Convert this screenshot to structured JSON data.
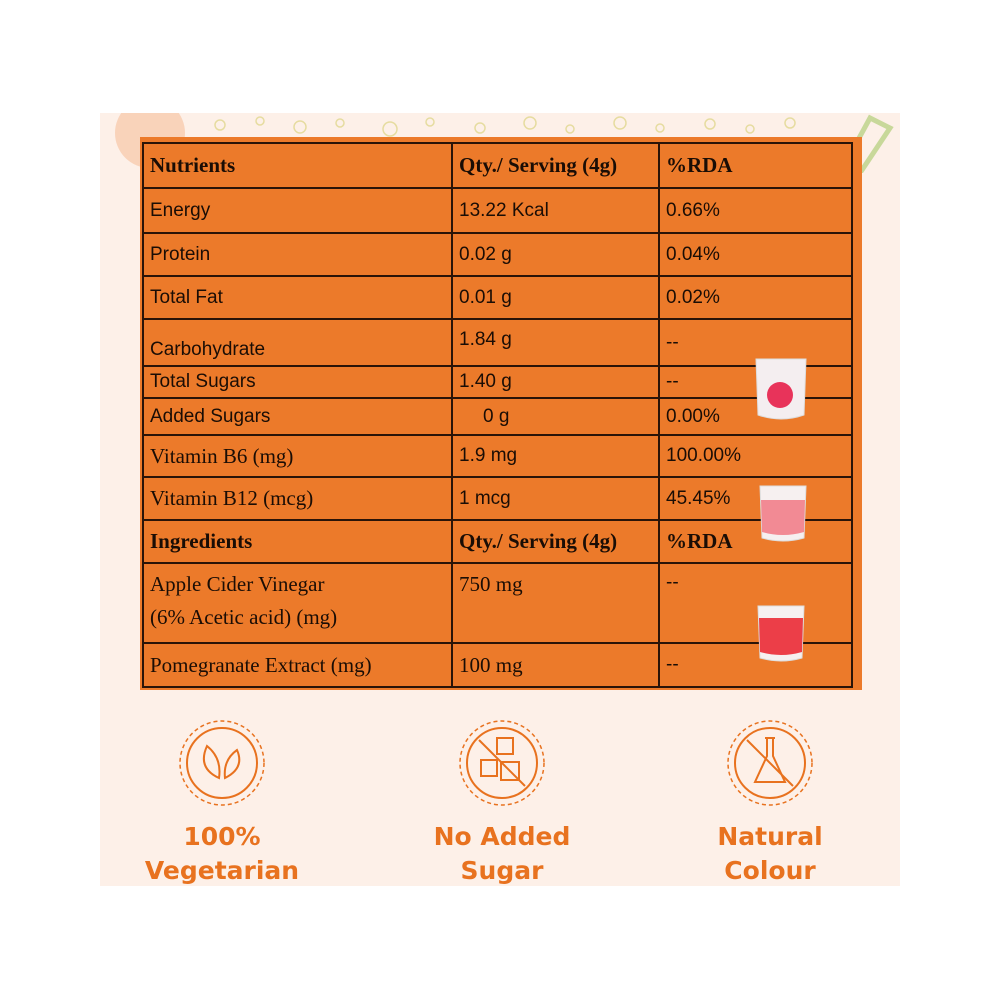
{
  "nutrition_table": {
    "header": {
      "col1": "Nutrients",
      "col2": "Qty./ Serving (4g)",
      "col3": "%RDA"
    },
    "nutrients": [
      {
        "name": "Energy",
        "qty": "13.22 Kcal",
        "rda": "0.66%"
      },
      {
        "name": "Protein",
        "qty": "0.02 g",
        "rda": "0.04%"
      },
      {
        "name": "Total Fat",
        "qty": "0.01 g",
        "rda": "0.02%"
      },
      {
        "name": "Carbohydrate",
        "qty": "1.84 g",
        "rda": "--"
      },
      {
        "name": "Total Sugars",
        "qty": "1.40 g",
        "rda": "--"
      },
      {
        "name": "Added Sugars",
        "qty": "0 g",
        "rda": "0.00%"
      },
      {
        "name": "Vitamin B6 (mg)",
        "qty": "1.9 mg",
        "rda": "100.00%"
      },
      {
        "name": "Vitamin B12 (mcg)",
        "qty": "1 mcg",
        "rda": "45.45%"
      }
    ],
    "ingredients_header": {
      "col1": "Ingredients",
      "col2": "Qty./ Serving (4g)",
      "col3": "%RDA"
    },
    "ingredients": [
      {
        "name_line1": "Apple Cider Vinegar",
        "name_line2": "(6% Acetic acid) (mg)",
        "qty": "750 mg",
        "rda": "--"
      },
      {
        "name": "Pomegranate Extract (mg)",
        "qty": "100 mg",
        "rda": "--"
      }
    ]
  },
  "badges": [
    {
      "line1": "100%",
      "line2": "Vegetarian",
      "icon": "leaves-icon"
    },
    {
      "line1": "No Added",
      "line2": "Sugar",
      "icon": "no-sugar-cubes-icon"
    },
    {
      "line1": "Natural",
      "line2": "Colour",
      "icon": "no-chemical-flask-icon"
    }
  ],
  "colors": {
    "table_bg": "#ec7a2a",
    "accent": "#e8721f",
    "panel_bg": "#fdf0e8",
    "border": "#2a1408"
  }
}
